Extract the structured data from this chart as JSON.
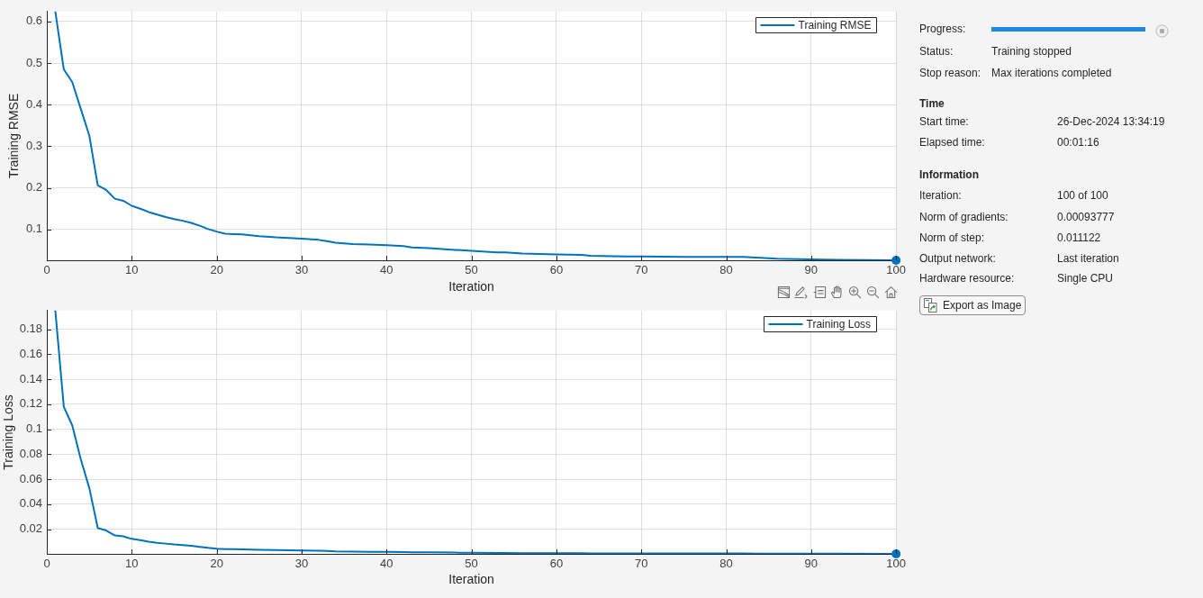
{
  "chart_data": [
    {
      "type": "line",
      "xlabel": "Iteration",
      "ylabel": "Training RMSE",
      "xlim": [
        0,
        100
      ],
      "xticks": [
        0,
        10,
        20,
        30,
        40,
        50,
        60,
        70,
        80,
        90,
        100
      ],
      "ylim": [
        0.026,
        0.624
      ],
      "yticks": [
        0.1,
        0.2,
        0.3,
        0.4,
        0.5,
        0.6
      ],
      "grid": true,
      "legend": "top right",
      "series": [
        {
          "name": "Training RMSE",
          "color": "#0072bd",
          "x": [
            1,
            2,
            3,
            4,
            5,
            6,
            7,
            8,
            9,
            10,
            11,
            12,
            13,
            14,
            15,
            16,
            17,
            18,
            19,
            20,
            21,
            22,
            23,
            25,
            27,
            30,
            32,
            33,
            34,
            36,
            38,
            40,
            42,
            43,
            45,
            48,
            50,
            53,
            54,
            56,
            60,
            63,
            64,
            68,
            70,
            75,
            80,
            82,
            84,
            86,
            90,
            93,
            100
          ],
          "values": [
            0.624,
            0.485,
            0.454,
            0.39,
            0.326,
            0.206,
            0.195,
            0.174,
            0.169,
            0.157,
            0.15,
            0.142,
            0.136,
            0.13,
            0.125,
            0.121,
            0.116,
            0.109,
            0.101,
            0.095,
            0.09,
            0.089,
            0.088,
            0.084,
            0.081,
            0.078,
            0.075,
            0.072,
            0.068,
            0.065,
            0.064,
            0.062,
            0.06,
            0.057,
            0.055,
            0.051,
            0.049,
            0.045,
            0.045,
            0.042,
            0.04,
            0.039,
            0.037,
            0.035,
            0.035,
            0.034,
            0.034,
            0.034,
            0.032,
            0.03,
            0.028,
            0.027,
            0.026
          ]
        },
        {
          "type": "scatter",
          "color": "#0072bd",
          "marker": "circle",
          "x": [
            100
          ],
          "values": [
            0.026
          ]
        }
      ]
    },
    {
      "type": "line",
      "xlabel": "Iteration",
      "ylabel": "Training Loss",
      "xlim": [
        0,
        100
      ],
      "xticks": [
        0,
        10,
        20,
        30,
        40,
        50,
        60,
        70,
        80,
        90,
        100
      ],
      "ylim": [
        0.0003,
        0.195
      ],
      "yticks": [
        0.02,
        0.04,
        0.06,
        0.08,
        0.1,
        0.12,
        0.14,
        0.16,
        0.18
      ],
      "grid": true,
      "legend": "top right",
      "series": [
        {
          "name": "Training Loss",
          "color": "#0072bd",
          "x": [
            1,
            2,
            3,
            4,
            5,
            6,
            7,
            8,
            9,
            10,
            11,
            12,
            13,
            14,
            15,
            16,
            17,
            18,
            19,
            20,
            21,
            22,
            23,
            25,
            27,
            30,
            32,
            33,
            34,
            36,
            38,
            40,
            42,
            43,
            45,
            48,
            50,
            53,
            54,
            56,
            60,
            63,
            64,
            68,
            70,
            75,
            80,
            82,
            84,
            86,
            90,
            93,
            100
          ],
          "values": [
            0.195,
            0.118,
            0.103,
            0.076,
            0.053,
            0.021,
            0.019,
            0.015,
            0.0143,
            0.0123,
            0.0113,
            0.0101,
            0.0092,
            0.0085,
            0.0078,
            0.0073,
            0.0067,
            0.0059,
            0.0051,
            0.0045,
            0.0041,
            0.004,
            0.0039,
            0.0035,
            0.0033,
            0.003,
            0.0028,
            0.0026,
            0.0023,
            0.0021,
            0.002,
            0.0019,
            0.0018,
            0.0016,
            0.0015,
            0.0013,
            0.0012,
            0.001,
            0.001,
            0.0009,
            0.0008,
            0.0008,
            0.0007,
            0.0006,
            0.0006,
            0.0006,
            0.0006,
            0.0006,
            0.0005,
            0.0005,
            0.0004,
            0.0004,
            0.0003
          ]
        },
        {
          "type": "scatter",
          "color": "#0072bd",
          "marker": "circle",
          "x": [
            100
          ],
          "values": [
            0.0003
          ]
        }
      ]
    },
    {
      "type": "other",
      "annotations": [
        "Progress:",
        "Status:",
        "Training stopped",
        "Stop reason:",
        "Max iterations completed",
        "Time",
        "Start time:",
        "26-Dec-2024 13:34:19",
        "Elapsed time:",
        "00:01:16",
        "Information",
        "Iteration:",
        "100 of 100",
        "Norm of gradients:",
        "0.00093777",
        "Norm of step:",
        "0.011122",
        "Output network:",
        "Last iteration",
        "Hardware resource:",
        "Single CPU",
        "Export as Image"
      ]
    }
  ]
}
